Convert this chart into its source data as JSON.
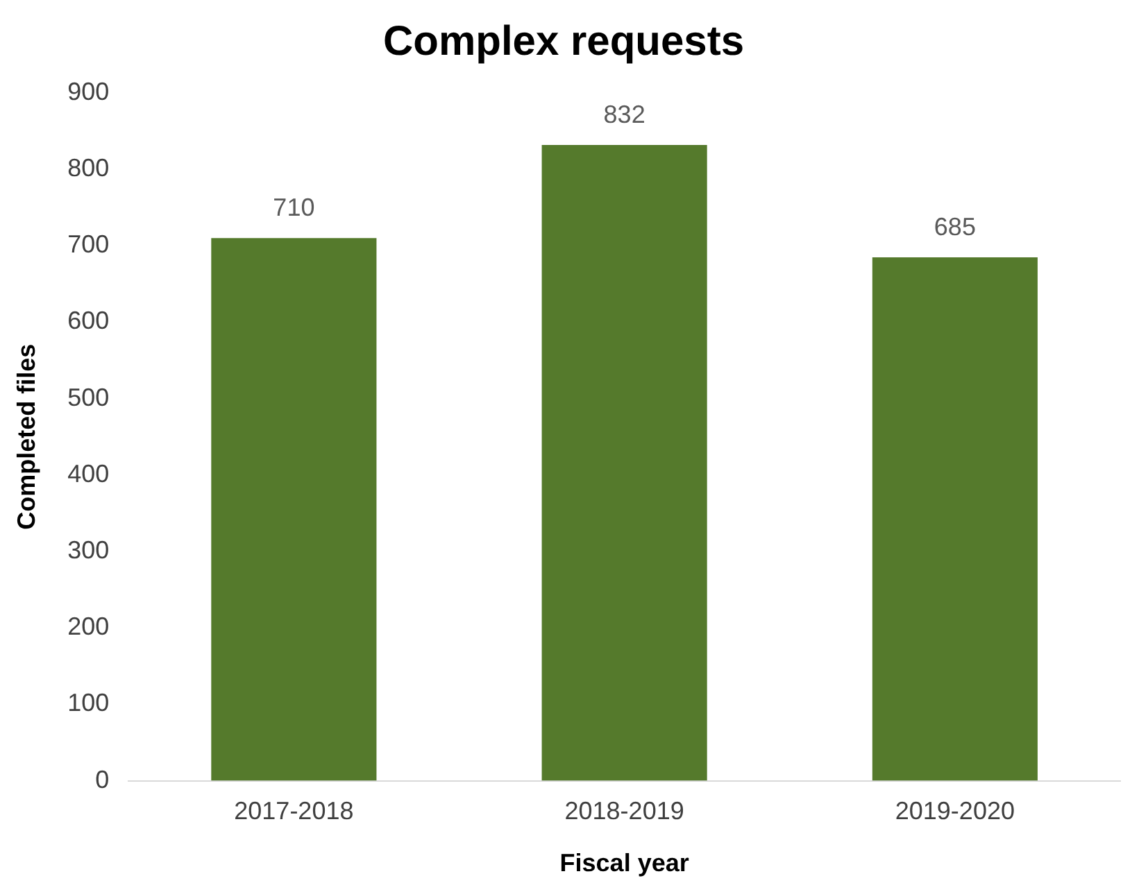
{
  "chart_data": {
    "type": "bar",
    "title": "Complex requests",
    "xlabel": "Fiscal year",
    "ylabel": "Completed files",
    "categories": [
      "2017-2018",
      "2018-2019",
      "2019-2020"
    ],
    "values": [
      710,
      832,
      685
    ],
    "color": "#557a2c",
    "ylim": [
      0,
      900
    ],
    "yticks": [
      0,
      100,
      200,
      300,
      400,
      500,
      600,
      700,
      800,
      900
    ],
    "grid": false,
    "legend": false,
    "data_labels": true
  }
}
